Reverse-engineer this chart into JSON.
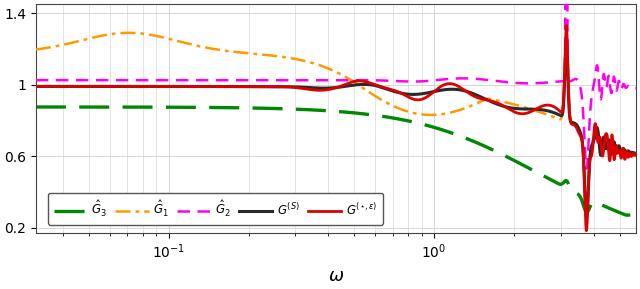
{
  "title": "",
  "xlabel": "$\\omega$",
  "ylabel": "",
  "ylim": [
    0.17,
    1.45
  ],
  "yticks": [
    0.2,
    0.6,
    1.0,
    1.4
  ],
  "ytick_labels": [
    "0.2",
    "0.6",
    "1",
    "1.4"
  ],
  "grid_color": "#d0d0d0",
  "background_color": "#ffffff",
  "legend_labels": [
    "$G^{(S)}$",
    "$\\hat{G}_1$",
    "$\\hat{G}_2$",
    "$\\hat{G}_3$",
    "$G^{(\\star,\\epsilon)}$"
  ],
  "line_colors": [
    "#2a2a2a",
    "#ff9900",
    "#ff00ee",
    "#008800",
    "#dd0000"
  ],
  "line_widths": [
    2.2,
    1.8,
    1.8,
    2.4,
    2.0
  ]
}
